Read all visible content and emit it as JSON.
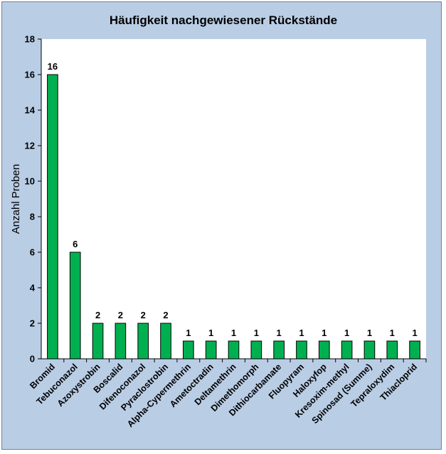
{
  "chart_data": {
    "type": "bar",
    "title": "Häufigkeit nachgewiesener Rückstände",
    "ylabel": "Anzahl Proben",
    "xlabel": "",
    "ylim": [
      0,
      18
    ],
    "yticks": [
      0,
      2,
      4,
      6,
      8,
      10,
      12,
      14,
      16,
      18
    ],
    "grid": false,
    "legend": "none",
    "bar_color": "#00b050",
    "background_color": "#b9cde5",
    "plot_background_color": "#ffffff",
    "categories": [
      "Bromid",
      "Tebuconazol",
      "Azoxystrobin",
      "Boscalid",
      "Difenoconazol",
      "Pyraclostrobin",
      "Alpha-Cypermethrin",
      "Ametoctradin",
      "Deltamethrin",
      "Dimethomorph",
      "Dithiocarbamate",
      "Fluopyram",
      "Haloxyfop",
      "Kresoxim-methyl",
      "Spinosad (Summe)",
      "Tepraloxydim",
      "Thiacloprid"
    ],
    "values": [
      16,
      6,
      2,
      2,
      2,
      2,
      1,
      1,
      1,
      1,
      1,
      1,
      1,
      1,
      1,
      1,
      1
    ]
  }
}
